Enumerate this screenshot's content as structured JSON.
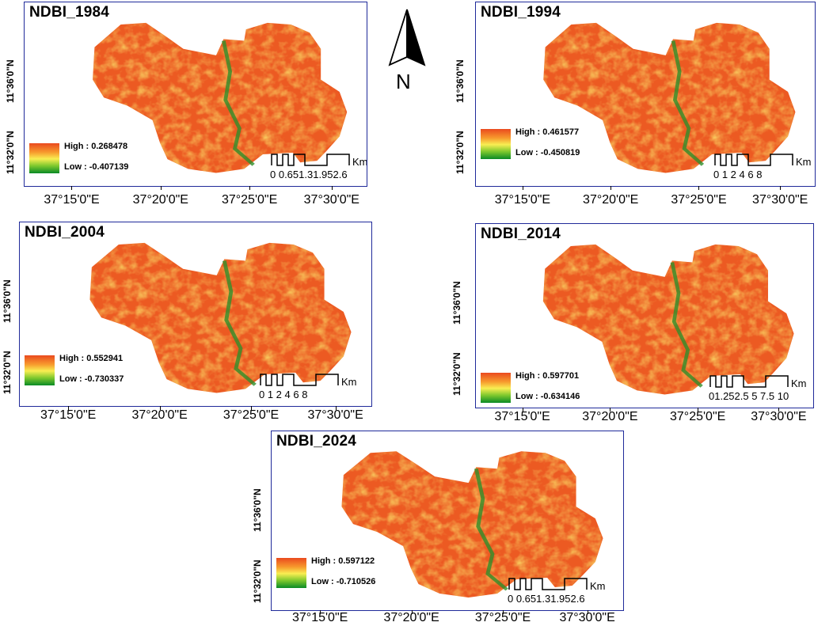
{
  "north_arrow": {
    "letter": "N"
  },
  "maps": [
    {
      "title": "NDBI_1984",
      "legend_high": "High : 0.268478",
      "legend_low": "Low : -0.407139",
      "scale_labels": "0 0.651.31.952.6",
      "scale_unit": "Km",
      "lat_labels": [
        "11°36'0\"N",
        "11°32'0\"N"
      ],
      "lon_labels": [
        "37°15'0\"E",
        "37°20'0\"E",
        "37°25'0\"E",
        "37°30'0\"E"
      ]
    },
    {
      "title": "NDBI_1994",
      "legend_high": "High : 0.461577",
      "legend_low": "Low : -0.450819",
      "scale_labels": "0 1 2    4    6    8",
      "scale_unit": "Km",
      "lat_labels": [
        "11°36'0\"N",
        "11°32'0\"N"
      ],
      "lon_labels": [
        "37°15'0\"E",
        "37°20'0\"E",
        "37°25'0\"E",
        "37°30'0\"E"
      ]
    },
    {
      "title": "NDBI_2004",
      "legend_high": "High : 0.552941",
      "legend_low": "Low : -0.730337",
      "scale_labels": "0 1 2    4    6    8",
      "scale_unit": "Km",
      "lat_labels": [
        "11°36'0\"N",
        "11°32'0\"N"
      ],
      "lon_labels": [
        "37°15'0\"E",
        "37°20'0\"E",
        "37°25'0\"E",
        "37°30'0\"E"
      ]
    },
    {
      "title": "NDBI_2014",
      "legend_high": "High : 0.597701",
      "legend_low": "Low : -0.634146",
      "scale_labels": "01.252.5    5    7.5   10",
      "scale_unit": "Km",
      "lat_labels": [
        "11°36'0\"N",
        "11°32'0\"N"
      ],
      "lon_labels": [
        "37°15'0\"E",
        "37°20'0\"E",
        "37°25'0\"E",
        "37°30'0\"E"
      ]
    },
    {
      "title": "NDBI_2024",
      "legend_high": "High : 0.597122",
      "legend_low": "Low : -0.710526",
      "scale_labels": "0 0.651.31.952.6",
      "scale_unit": "Km",
      "lat_labels": [
        "11°36'0\"N",
        "11°32'0\"N"
      ],
      "lon_labels": [
        "37°15'0\"E",
        "37°20'0\"E",
        "37°25'0\"E",
        "37°30'0\"E"
      ]
    }
  ]
}
